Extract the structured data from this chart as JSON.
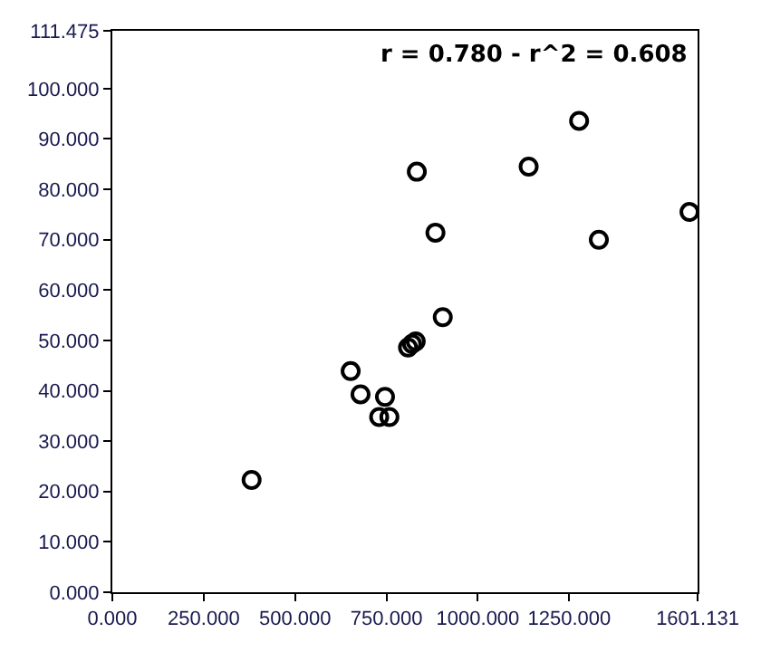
{
  "chart_data": {
    "type": "scatter",
    "annotations": [
      "r = 0.780 - r^2 = 0.608"
    ],
    "x": [
      381,
      652,
      679,
      746,
      730,
      758,
      809,
      820,
      830,
      904,
      833,
      884,
      1139,
      1277,
      1331,
      1579
    ],
    "values": [
      22.3,
      43.9,
      39.3,
      38.8,
      34.8,
      34.8,
      48.6,
      49.3,
      49.8,
      54.6,
      83.5,
      71.4,
      84.5,
      93.6,
      70.0,
      75.5
    ],
    "color": "#000000",
    "marker": "circle",
    "xlim": [
      0,
      1601.131
    ],
    "ylim": [
      0,
      111.475
    ],
    "xticks": [
      {
        "value": 0,
        "label": "0.000"
      },
      {
        "value": 250,
        "label": "250.000"
      },
      {
        "value": 500,
        "label": "500.000"
      },
      {
        "value": 750,
        "label": "750.000"
      },
      {
        "value": 1000,
        "label": "1000.000"
      },
      {
        "value": 1250,
        "label": "1250.000"
      },
      {
        "value": 1601.131,
        "label": "1601.131"
      }
    ],
    "yticks": [
      {
        "value": 0,
        "label": "0.000"
      },
      {
        "value": 10,
        "label": "10.000"
      },
      {
        "value": 20,
        "label": "20.000"
      },
      {
        "value": 30,
        "label": "30.000"
      },
      {
        "value": 40,
        "label": "40.000"
      },
      {
        "value": 50,
        "label": "50.000"
      },
      {
        "value": 60,
        "label": "60.000"
      },
      {
        "value": 70,
        "label": "70.000"
      },
      {
        "value": 80,
        "label": "80.000"
      },
      {
        "value": 90,
        "label": "90.000"
      },
      {
        "value": 100,
        "label": "100.000"
      },
      {
        "value": 111.475,
        "label": "111.475"
      }
    ]
  }
}
